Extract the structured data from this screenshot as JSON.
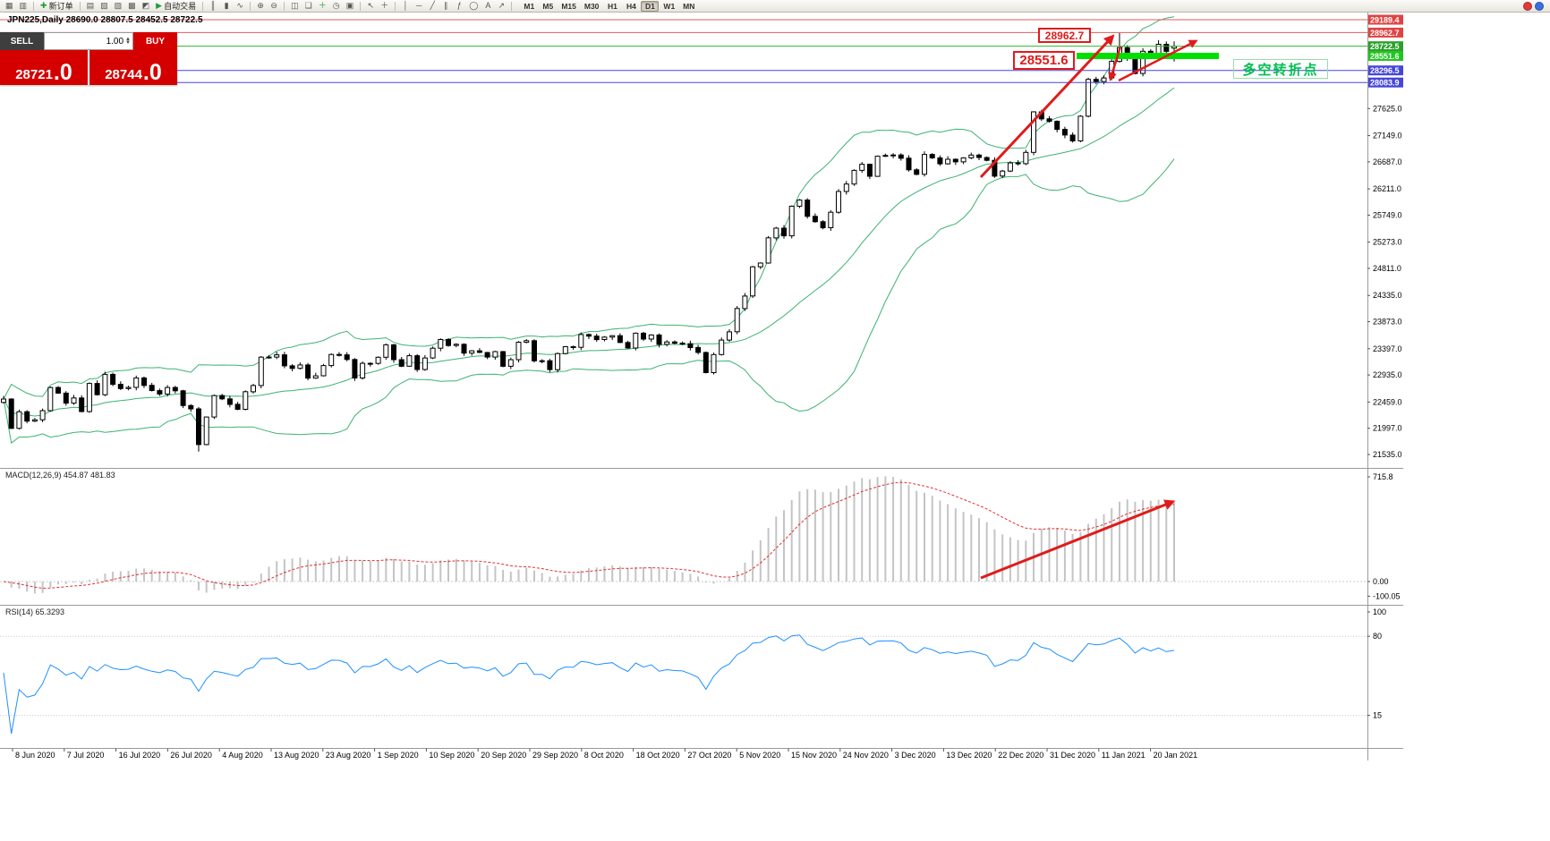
{
  "window": {
    "badges": [
      {
        "name": "red-notification-badge",
        "color": "#e03a3a"
      },
      {
        "name": "blue-notification-badge",
        "color": "#3a6fe0"
      }
    ]
  },
  "toolbar": {
    "items": [
      {
        "type": "icon",
        "name": "new-chart-icon",
        "glyph": "▦"
      },
      {
        "type": "icon",
        "name": "chart-profiles-icon",
        "glyph": "▥"
      },
      {
        "type": "sep"
      },
      {
        "type": "text",
        "name": "new-order-button",
        "glyph": "✚",
        "glyph_color": "#1f9d3a",
        "label": "新订单"
      },
      {
        "type": "sep"
      },
      {
        "type": "icon",
        "name": "market-watch-icon",
        "glyph": "▤"
      },
      {
        "type": "icon",
        "name": "data-window-icon",
        "glyph": "▧"
      },
      {
        "type": "icon",
        "name": "navigator-icon",
        "glyph": "▨"
      },
      {
        "type": "icon",
        "name": "terminal-icon",
        "glyph": "▩"
      },
      {
        "type": "icon",
        "name": "strategy-tester-icon",
        "glyph": "◩"
      },
      {
        "type": "text",
        "name": "autotrading-button",
        "glyph": "▶",
        "glyph_color": "#1f9d3a",
        "label": "自动交易"
      },
      {
        "type": "sep"
      },
      {
        "type": "icon",
        "name": "bar-chart-mode-icon",
        "glyph": "║"
      },
      {
        "type": "icon",
        "name": "candlestick-mode-icon",
        "glyph": "▮"
      },
      {
        "type": "icon",
        "name": "line-chart-mode-icon",
        "glyph": "∿"
      },
      {
        "type": "sep"
      },
      {
        "type": "icon",
        "name": "zoom-in-icon",
        "glyph": "⊕"
      },
      {
        "type": "icon",
        "name": "zoom-out-icon",
        "glyph": "⊖"
      },
      {
        "type": "sep"
      },
      {
        "type": "icon",
        "name": "tile-windows-icon",
        "glyph": "◫"
      },
      {
        "type": "icon",
        "name": "cascade-windows-icon",
        "glyph": "❏"
      },
      {
        "type": "icon",
        "name": "indicators-icon",
        "glyph": "＋",
        "glyph_color": "#1f9d3a"
      },
      {
        "type": "icon",
        "name": "periods-icon",
        "glyph": "◷"
      },
      {
        "type": "icon",
        "name": "templates-icon",
        "glyph": "▣"
      },
      {
        "type": "sep"
      },
      {
        "type": "icon",
        "name": "cursor-icon",
        "glyph": "↖"
      },
      {
        "type": "icon",
        "name": "crosshair-icon",
        "glyph": "＋"
      },
      {
        "type": "sep"
      },
      {
        "type": "icon",
        "name": "vertical-line-icon",
        "glyph": "│"
      },
      {
        "type": "icon",
        "name": "horizontal-line-icon",
        "glyph": "─"
      },
      {
        "type": "icon",
        "name": "trendline-icon",
        "glyph": "╱"
      },
      {
        "type": "icon",
        "name": "channel-icon",
        "glyph": "∥"
      },
      {
        "type": "icon",
        "name": "fibonacci-icon",
        "glyph": "ƒ"
      },
      {
        "type": "icon",
        "name": "shapes-icon",
        "glyph": "◯"
      },
      {
        "type": "icon",
        "name": "text-tool-icon",
        "glyph": "A"
      },
      {
        "type": "icon",
        "name": "arrows-tool-icon",
        "glyph": "↗"
      },
      {
        "type": "sep"
      }
    ],
    "timeframes": [
      "M1",
      "M5",
      "M15",
      "M30",
      "H1",
      "H4",
      "D1",
      "W1",
      "MN"
    ],
    "active_timeframe": "D1"
  },
  "chart": {
    "title": "JPN225,Daily  28690.0 28807.5 28452.5 28722.5"
  },
  "trade_panel": {
    "sell_label": "SELL",
    "buy_label": "BUY",
    "volume": "1.00",
    "sell_price_main": "28721",
    "sell_price_frac": ".0",
    "buy_price_main": "28744",
    "buy_price_frac": ".0"
  },
  "annotations": {
    "callout_high": "28962.7",
    "callout_support": "28551.6",
    "note_text": "多空转折点",
    "arrow_color": "#e01b1b"
  },
  "indicators": {
    "macd_label": "MACD(12,26,9) 454.87 481.83",
    "rsi_label": "RSI(14) 65.3293"
  },
  "chart_data": {
    "type": "candlestick",
    "symbol": "JPN225",
    "timeframe": "Daily",
    "last_candle": {
      "open": 28690.0,
      "high": 28807.5,
      "low": 28452.5,
      "close": 28722.5
    },
    "closes": [
      22512,
      21995,
      22288,
      22122,
      22146,
      22306,
      22714,
      22615,
      22439,
      22530,
      22291,
      22785,
      22587,
      22946,
      22770,
      22696,
      22717,
      22884,
      22752,
      22660,
      22600,
      22715,
      22657,
      22397,
      22339,
      21710,
      22195,
      22573,
      22515,
      22418,
      22330,
      22640,
      22750,
      23249,
      23250,
      23289,
      23096,
      23051,
      23111,
      22880,
      22920,
      23100,
      23296,
      23290,
      23208,
      22882,
      23140,
      23138,
      23247,
      23466,
      23205,
      23089,
      23274,
      23032,
      23235,
      23406,
      23559,
      23454,
      23475,
      23319,
      23360,
      23331,
      23250,
      23346,
      23087,
      23204,
      23511,
      23539,
      23185,
      23185,
      23029,
      23312,
      23433,
      23422,
      23647,
      23619,
      23558,
      23601,
      23626,
      23507,
      23410,
      23671,
      23567,
      23639,
      23474,
      23516,
      23494,
      23485,
      23418,
      23331,
      22977,
      23295,
      23550,
      23695,
      24105,
      24325,
      24839,
      24905,
      25349,
      25520,
      25385,
      25906,
      26014,
      25728,
      25634,
      25527,
      25800,
      26165,
      26296,
      26537,
      26644,
      26433,
      26787,
      26800,
      26809,
      26751,
      26547,
      26467,
      26817,
      26756,
      26652,
      26732,
      26687,
      26757,
      26806,
      26763,
      26714,
      26436,
      26524,
      26668,
      26656,
      26854,
      27568,
      27444,
      27400,
      27258,
      27158,
      27055,
      27490,
      28139,
      28100,
      28164,
      28456,
      28698,
      28519,
      28242,
      28633,
      28523,
      28756,
      28631,
      28722.5
    ],
    "high_overrides": {
      "139": 28155,
      "143": 28955,
      "148": 28830
    },
    "low_overrides": {
      "25": 21585
    },
    "x_axis_dates": [
      "8 Jun 2020",
      "7 Jul 2020",
      "16 Jul 2020",
      "26 Jul 2020",
      "4 Aug 2020",
      "13 Aug 2020",
      "23 Aug 2020",
      "1 Sep 2020",
      "10 Sep 2020",
      "20 Sep 2020",
      "29 Sep 2020",
      "8 Oct 2020",
      "18 Oct 2020",
      "27 Oct 2020",
      "5 Nov 2020",
      "15 Nov 2020",
      "24 Nov 2020",
      "3 Dec 2020",
      "13 Dec 2020",
      "22 Dec 2020",
      "31 Dec 2020",
      "11 Jan 2021",
      "20 Jan 2021"
    ],
    "y_axis_ticks": [
      "27625.0",
      "27149.0",
      "26687.0",
      "26211.0",
      "25749.0",
      "25273.0",
      "24811.0",
      "24335.0",
      "23873.0",
      "23397.0",
      "22935.0",
      "22459.0",
      "21997.0",
      "21535.0"
    ],
    "price_lines": [
      {
        "price": 29189.4,
        "label": "29189.4",
        "color": "#e05b5b",
        "label_bg": "#e04343",
        "width": 1
      },
      {
        "price": 28962.7,
        "label": "28962.7",
        "color": "#e05b5b",
        "label_bg": "#e04343",
        "width": 1
      },
      {
        "price": 28722.5,
        "label": "28722.5",
        "color": "#2dbb2d",
        "label_bg": "#2ca02c",
        "width": 1
      },
      {
        "price": 28551.6,
        "label": "28551.6",
        "color": "#00e000",
        "label_bg": "#21c621",
        "segment": true
      },
      {
        "price": 28296.5,
        "label": "28296.5",
        "color": "#4646d8",
        "label_bg": "#4646d8",
        "width": 1
      },
      {
        "price": 28083.9,
        "label": "28083.9",
        "color": "#4646d8",
        "label_bg": "#4646d8",
        "width": 1
      }
    ],
    "bollinger": {
      "period": 20,
      "deviation": 2,
      "color": "#3CB371"
    },
    "macd": {
      "fast": 12,
      "slow": 26,
      "signal_period": 9,
      "current_macd": 454.87,
      "current_signal": 481.83,
      "axis_ticks": [
        "715.8",
        "0.00",
        "-100.05"
      ],
      "histogram_color": "#c4c4c4",
      "signal_color": "#e03030"
    },
    "rsi": {
      "period": 14,
      "current": 65.3293,
      "axis_ticks": [
        "100",
        "80",
        "15"
      ],
      "levels": [
        80,
        15
      ],
      "color": "#1E90FF"
    }
  }
}
